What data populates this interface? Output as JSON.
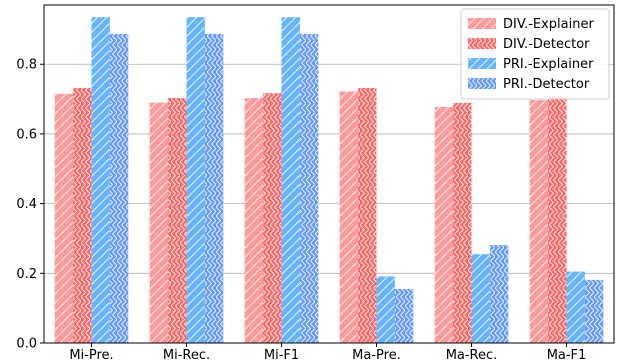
{
  "chart_data": {
    "type": "bar",
    "categories": [
      "Mi-Pre.",
      "Mi-Rec.",
      "Mi-F1",
      "Ma-Pre.",
      "Ma-Rec.",
      "Ma-F1"
    ],
    "series": [
      {
        "name": "DIV.-Explainer",
        "values": [
          0.715,
          0.69,
          0.703,
          0.722,
          0.677,
          0.697
        ],
        "color": "#ff9999",
        "hatch": "forward"
      },
      {
        "name": "DIV.-Detector",
        "values": [
          0.732,
          0.703,
          0.717,
          0.732,
          0.689,
          0.708
        ],
        "color": "#ff6666",
        "hatch": "back"
      },
      {
        "name": "PRI.-Explainer",
        "values": [
          0.935,
          0.935,
          0.935,
          0.191,
          0.255,
          0.205
        ],
        "color": "#66b3ff",
        "hatch": "forward"
      },
      {
        "name": "PRI.-Detector",
        "values": [
          0.887,
          0.887,
          0.887,
          0.155,
          0.281,
          0.181
        ],
        "color": "#6699ff",
        "hatch": "back"
      }
    ],
    "xlabel": "",
    "ylabel": "",
    "ylim": [
      0,
      0.97
    ],
    "yticks": [
      "0.0",
      "0.2",
      "0.4",
      "0.6",
      "0.8"
    ],
    "grid": "horizontal",
    "legend_position": "top-right"
  }
}
